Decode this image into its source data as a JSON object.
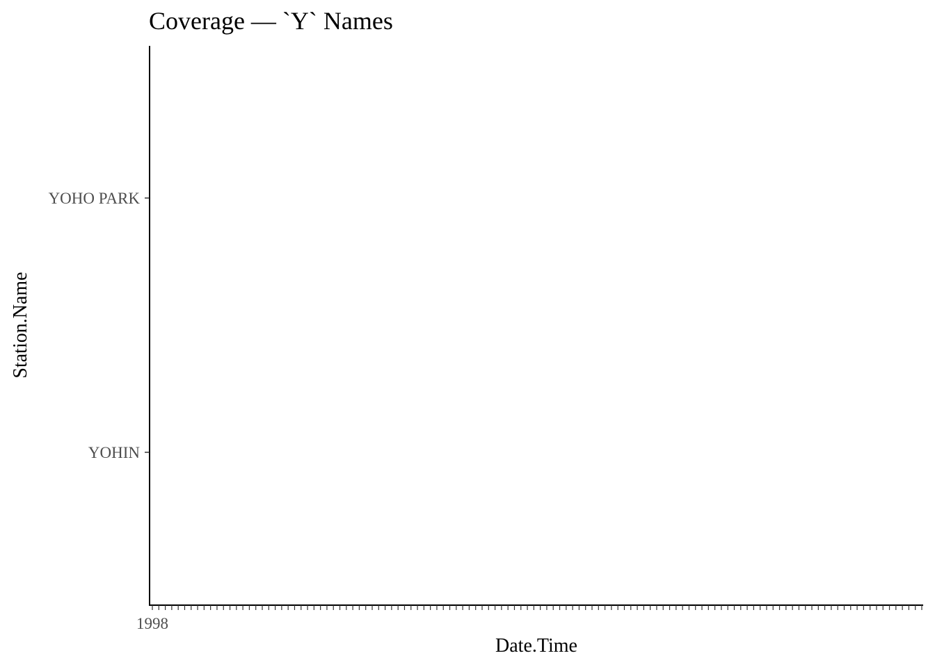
{
  "chart_data": {
    "type": "scatter",
    "title": "Coverage — `Y` Names",
    "xlabel": "Date.Time",
    "ylabel": "Station.Name",
    "y_categories": [
      "YOHIN",
      "YOHO PARK"
    ],
    "x_tick_count": 120,
    "x_tick_first_label": "1998",
    "points": [],
    "grid": false,
    "legend": "none"
  }
}
